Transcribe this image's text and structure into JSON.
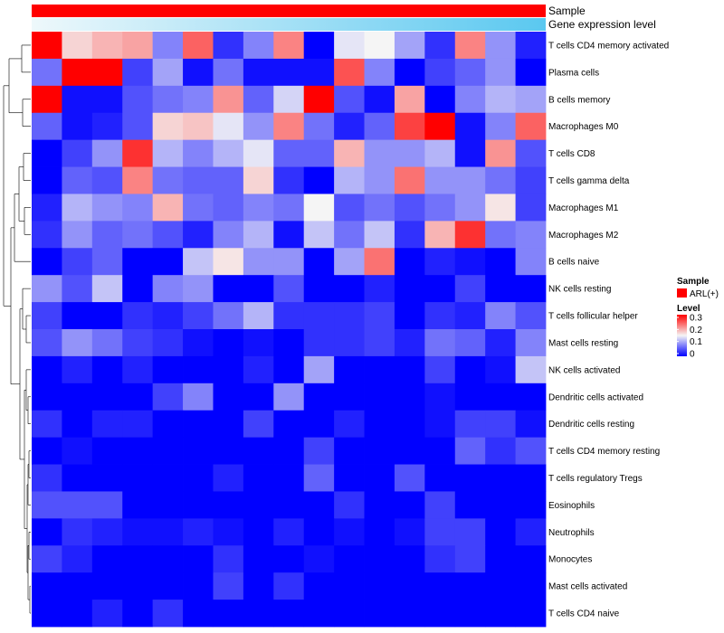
{
  "chart_data": {
    "type": "heatmap",
    "annotation_tracks": [
      {
        "label": "Sample",
        "color": "#ff0000"
      },
      {
        "label": "Gene expression level",
        "gradient_start": "#eef8fb",
        "gradient_end": "#5ac8f0"
      }
    ],
    "rows": [
      {
        "label": "T cells CD4 memory activated",
        "values": [
          0.3,
          0.17,
          0.19,
          0.2,
          0.08,
          0.24,
          0.03,
          0.08,
          0.22,
          0.0,
          0.14,
          0.15,
          0.1,
          0.03,
          0.22,
          0.09,
          0.02
        ]
      },
      {
        "label": "Plasma cells",
        "values": [
          0.07,
          0.32,
          0.31,
          0.04,
          0.1,
          0.01,
          0.07,
          0.01,
          0.01,
          0.01,
          0.25,
          0.08,
          0.0,
          0.04,
          0.06,
          0.09,
          0.0
        ]
      },
      {
        "label": "B cells memory",
        "values": [
          0.31,
          0.01,
          0.01,
          0.05,
          0.07,
          0.08,
          0.21,
          0.06,
          0.13,
          0.32,
          0.05,
          0.01,
          0.2,
          0.0,
          0.08,
          0.11,
          0.1
        ]
      },
      {
        "label": "Macrophages M0",
        "values": [
          0.06,
          0.01,
          0.02,
          0.05,
          0.17,
          0.18,
          0.14,
          0.09,
          0.22,
          0.07,
          0.02,
          0.06,
          0.26,
          0.32,
          0.01,
          0.08,
          0.24
        ]
      },
      {
        "label": "T cells CD8",
        "values": [
          0.0,
          0.04,
          0.09,
          0.27,
          0.11,
          0.08,
          0.11,
          0.14,
          0.06,
          0.06,
          0.19,
          0.09,
          0.09,
          0.11,
          0.01,
          0.21,
          0.05
        ]
      },
      {
        "label": "T cells gamma delta",
        "values": [
          0.0,
          0.06,
          0.05,
          0.22,
          0.07,
          0.06,
          0.06,
          0.17,
          0.03,
          0.0,
          0.11,
          0.09,
          0.23,
          0.09,
          0.09,
          0.07,
          0.04
        ]
      },
      {
        "label": "Macrophages M1",
        "values": [
          0.02,
          0.11,
          0.09,
          0.08,
          0.19,
          0.07,
          0.06,
          0.08,
          0.07,
          0.15,
          0.05,
          0.07,
          0.05,
          0.07,
          0.09,
          0.16,
          0.04
        ]
      },
      {
        "label": "Macrophages M2",
        "values": [
          0.03,
          0.09,
          0.06,
          0.07,
          0.05,
          0.02,
          0.08,
          0.11,
          0.01,
          0.12,
          0.07,
          0.12,
          0.03,
          0.19,
          0.27,
          0.07,
          0.08
        ]
      },
      {
        "label": "B cells naive",
        "values": [
          0.0,
          0.04,
          0.06,
          0.0,
          0.0,
          0.12,
          0.16,
          0.09,
          0.09,
          0.0,
          0.1,
          0.23,
          0.0,
          0.02,
          0.01,
          0.0,
          0.08
        ]
      },
      {
        "label": "NK cells resting",
        "values": [
          0.09,
          0.05,
          0.12,
          0.0,
          0.08,
          0.09,
          0.0,
          0.0,
          0.05,
          0.0,
          0.0,
          0.02,
          0.0,
          0.0,
          0.04,
          0.0,
          0.0
        ]
      },
      {
        "label": "T cells follicular helper",
        "values": [
          0.04,
          0.0,
          0.0,
          0.03,
          0.02,
          0.04,
          0.07,
          0.11,
          0.03,
          0.03,
          0.03,
          0.04,
          0.0,
          0.03,
          0.02,
          0.08,
          0.05
        ]
      },
      {
        "label": "Mast cells resting",
        "values": [
          0.05,
          0.09,
          0.07,
          0.04,
          0.03,
          0.01,
          0.0,
          0.01,
          0.0,
          0.03,
          0.03,
          0.04,
          0.02,
          0.07,
          0.06,
          0.02,
          0.08
        ]
      },
      {
        "label": "NK cells activated",
        "values": [
          0.0,
          0.02,
          0.0,
          0.02,
          0.0,
          0.0,
          0.0,
          0.02,
          0.0,
          0.1,
          0.0,
          0.0,
          0.0,
          0.04,
          0.0,
          0.01,
          0.12
        ]
      },
      {
        "label": "Dendritic cells activated",
        "values": [
          0.0,
          0.0,
          0.0,
          0.0,
          0.04,
          0.08,
          0.0,
          0.0,
          0.09,
          0.0,
          0.0,
          0.0,
          0.0,
          0.01,
          0.0,
          0.0,
          0.0
        ]
      },
      {
        "label": "Dendritic cells resting",
        "values": [
          0.03,
          0.0,
          0.02,
          0.02,
          0.0,
          0.0,
          0.0,
          0.04,
          0.0,
          0.0,
          0.02,
          0.0,
          0.0,
          0.01,
          0.04,
          0.04,
          0.01
        ]
      },
      {
        "label": "T cells CD4 memory resting",
        "values": [
          0.0,
          0.01,
          0.0,
          0.0,
          0.0,
          0.0,
          0.0,
          0.0,
          0.0,
          0.04,
          0.0,
          0.0,
          0.0,
          0.0,
          0.06,
          0.03,
          0.05
        ]
      },
      {
        "label": "T cells regulatory  Tregs",
        "values": [
          0.03,
          0.0,
          0.0,
          0.0,
          0.0,
          0.0,
          0.02,
          0.0,
          0.0,
          0.06,
          0.0,
          0.0,
          0.05,
          0.0,
          0.0,
          0.0,
          0.0
        ]
      },
      {
        "label": "Eosinophils",
        "values": [
          0.05,
          0.05,
          0.05,
          0.0,
          0.0,
          0.0,
          0.0,
          0.0,
          0.0,
          0.0,
          0.03,
          0.0,
          0.0,
          0.04,
          0.0,
          0.0,
          0.0
        ]
      },
      {
        "label": "Neutrophils",
        "values": [
          0.0,
          0.03,
          0.02,
          0.01,
          0.01,
          0.02,
          0.01,
          0.0,
          0.02,
          0.0,
          0.01,
          0.0,
          0.01,
          0.04,
          0.04,
          0.0,
          0.02
        ]
      },
      {
        "label": "Monocytes",
        "values": [
          0.04,
          0.02,
          0.0,
          0.0,
          0.0,
          0.0,
          0.03,
          0.0,
          0.0,
          0.01,
          0.0,
          0.0,
          0.0,
          0.03,
          0.04,
          0.0,
          0.0
        ]
      },
      {
        "label": "Mast cells activated",
        "values": [
          0.0,
          0.0,
          0.0,
          0.0,
          0.0,
          0.0,
          0.04,
          0.0,
          0.03,
          0.0,
          0.0,
          0.0,
          0.0,
          0.0,
          0.0,
          0.0,
          0.0
        ]
      },
      {
        "label": "T cells CD4 naive",
        "values": [
          0.0,
          0.0,
          0.02,
          0.0,
          0.03,
          0.0,
          0.0,
          0.0,
          0.0,
          0.0,
          0.0,
          0.0,
          0.0,
          0.0,
          0.0,
          0.0,
          0.0
        ]
      }
    ],
    "color_scale": {
      "min": 0,
      "max": 0.3,
      "colors": [
        "#0000ff",
        "#f5f5f5",
        "#ff0000"
      ],
      "ticks": [
        "0.3",
        "0.2",
        "0.1",
        "0"
      ]
    },
    "legend": {
      "sample_title": "Sample",
      "sample_entry": "ARL(+)",
      "sample_color": "#ff0000",
      "level_title": "Level",
      "placement": "right"
    },
    "dendrogram": "rows, left side",
    "grid": false
  }
}
